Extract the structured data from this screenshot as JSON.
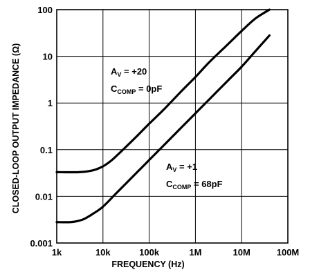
{
  "chart_data": {
    "type": "line",
    "title": "",
    "xlabel": "FREQUENCY (Hz)",
    "ylabel": "CLOSED-LOOP OUTPUT IMPEDANCE (Ω)",
    "x_scale": "log",
    "y_scale": "log",
    "xlim": [
      1000,
      100000000
    ],
    "ylim": [
      0.001,
      100
    ],
    "grid": true,
    "x_ticks": [
      {
        "value": 1000,
        "label": "1k"
      },
      {
        "value": 10000,
        "label": "10k"
      },
      {
        "value": 100000,
        "label": "100k"
      },
      {
        "value": 1000000,
        "label": "1M"
      },
      {
        "value": 10000000,
        "label": "10M"
      },
      {
        "value": 100000000,
        "label": "100M"
      }
    ],
    "y_ticks": [
      {
        "value": 0.001,
        "label": "0.001"
      },
      {
        "value": 0.01,
        "label": "0.01"
      },
      {
        "value": 0.1,
        "label": "0.1"
      },
      {
        "value": 1,
        "label": "1"
      },
      {
        "value": 10,
        "label": "10"
      },
      {
        "value": 100,
        "label": "100"
      }
    ],
    "series": [
      {
        "annotation": {
          "av": "A",
          "av_sub": "V",
          "av_value": " = +20",
          "c": "C",
          "c_sub": "COMP",
          "c_value": " = 0pF"
        },
        "points": [
          [
            1000,
            0.033
          ],
          [
            3000,
            0.033
          ],
          [
            6000,
            0.036
          ],
          [
            10000,
            0.044
          ],
          [
            15000,
            0.058
          ],
          [
            20000,
            0.075
          ],
          [
            30000,
            0.11
          ],
          [
            50000,
            0.18
          ],
          [
            100000,
            0.36
          ],
          [
            200000,
            0.7
          ],
          [
            500000,
            1.8
          ],
          [
            1000000,
            3.6
          ],
          [
            2000000,
            7.5
          ],
          [
            5000000,
            18
          ],
          [
            10000000,
            35
          ],
          [
            20000000,
            65
          ],
          [
            40000000,
            100
          ]
        ]
      },
      {
        "annotation": {
          "av": "A",
          "av_sub": "V",
          "av_value": " = +1",
          "c": "C",
          "c_sub": "COMP",
          "c_value": " = 68pF"
        },
        "points": [
          [
            1000,
            0.0028
          ],
          [
            2000,
            0.0028
          ],
          [
            3000,
            0.003
          ],
          [
            4000,
            0.0033
          ],
          [
            6000,
            0.0042
          ],
          [
            10000,
            0.006
          ],
          [
            20000,
            0.012
          ],
          [
            50000,
            0.03
          ],
          [
            100000,
            0.06
          ],
          [
            200000,
            0.12
          ],
          [
            500000,
            0.3
          ],
          [
            1000000,
            0.6
          ],
          [
            2000000,
            1.2
          ],
          [
            5000000,
            3
          ],
          [
            10000000,
            6
          ],
          [
            20000000,
            13
          ],
          [
            40000000,
            28
          ]
        ]
      }
    ]
  }
}
